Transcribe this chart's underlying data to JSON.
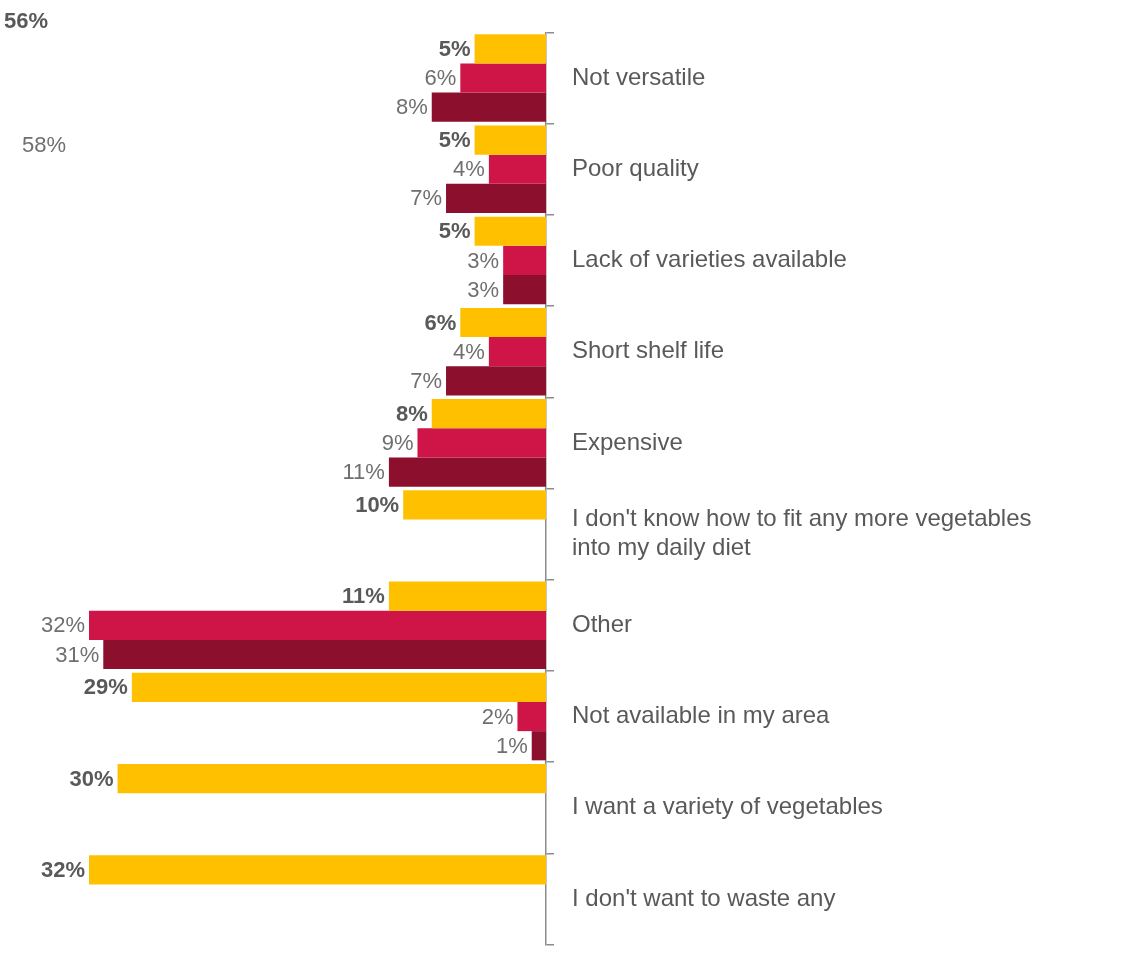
{
  "chart_data": {
    "type": "bar",
    "orientation": "horizontal",
    "categories": [
      "Not versatile",
      "Poor quality",
      "Lack of varieties available",
      "Short shelf life",
      "Expensive",
      "I don't know how to fit any more vegetables\ninto my daily diet",
      "Other",
      "Not available in my area",
      "I want a variety of vegetables",
      "I don't want to waste any"
    ],
    "series": [
      {
        "color": "#ffc000",
        "values": [
          5,
          5,
          5,
          6,
          8,
          10,
          11,
          29,
          30,
          32
        ],
        "value_labels": [
          "5%",
          "5%",
          "5%",
          "6%",
          "8%",
          "10%",
          "11%",
          "29%",
          "30%",
          "32%"
        ]
      },
      {
        "color": "#cf1547",
        "values": [
          6,
          4,
          3,
          4,
          9,
          null,
          32,
          2,
          null,
          null
        ],
        "value_labels": [
          "6%",
          "4%",
          "3%",
          "4%",
          "9%",
          null,
          "32%",
          "2%",
          null,
          null
        ]
      },
      {
        "color": "#8c0f2e",
        "values": [
          8,
          7,
          3,
          7,
          11,
          null,
          31,
          1,
          null,
          null
        ],
        "value_labels": [
          "8%",
          "7%",
          "3%",
          "7%",
          "11%",
          null,
          "31%",
          "1%",
          null,
          null
        ]
      }
    ],
    "tick_labels": "y",
    "grid": false,
    "legend": false,
    "annotations": [
      "56%",
      "58%"
    ]
  }
}
